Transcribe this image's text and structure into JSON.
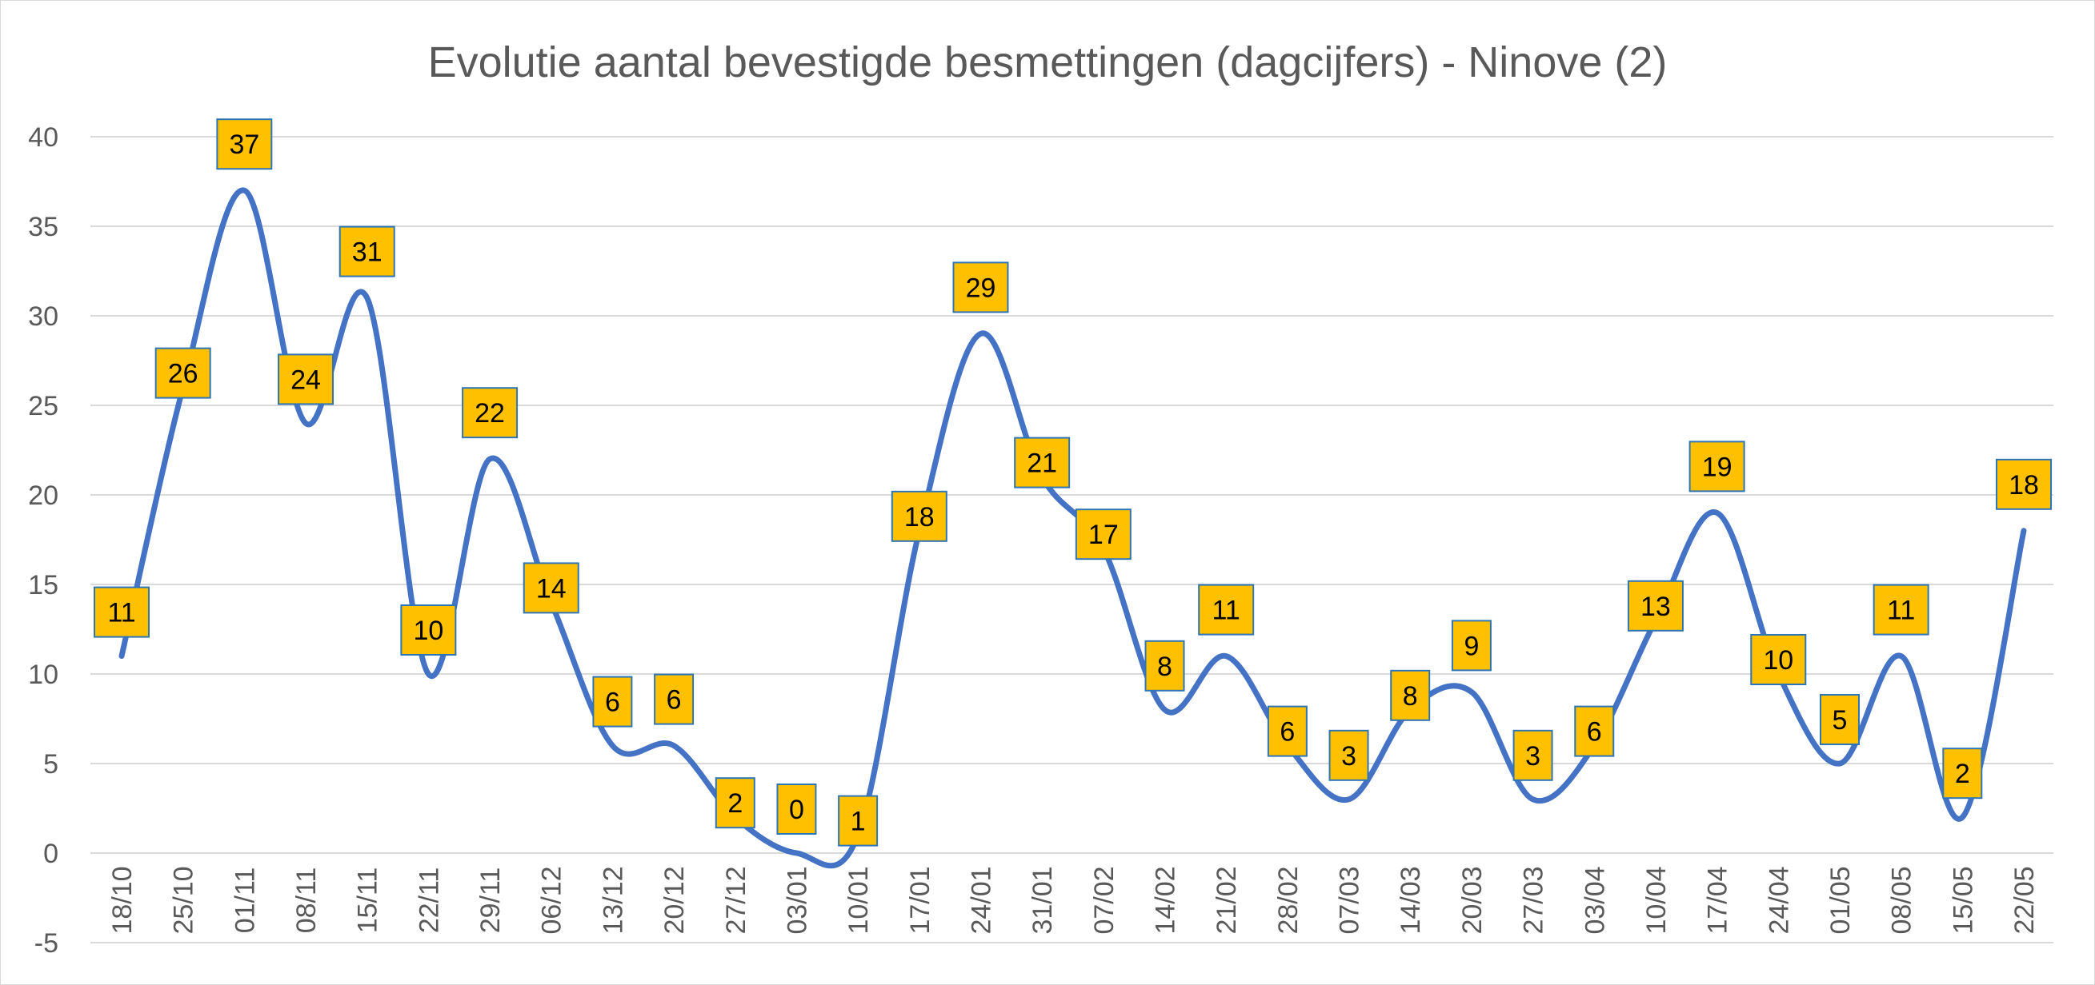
{
  "chart_data": {
    "type": "line",
    "title": "Evolutie aantal bevestigde besmettingen (dagcijfers) - Ninove (2)",
    "xlabel": "",
    "ylabel": "",
    "ylim": [
      -5,
      40
    ],
    "yticks": [
      -5,
      0,
      5,
      10,
      15,
      20,
      25,
      30,
      35,
      40
    ],
    "grid": true,
    "smooth": true,
    "legend": "none",
    "categories": [
      "18/10",
      "25/10",
      "01/11",
      "08/11",
      "15/11",
      "22/11",
      "29/11",
      "06/12",
      "13/12",
      "20/12",
      "27/12",
      "03/01",
      "10/01",
      "17/01",
      "24/01",
      "31/01",
      "07/02",
      "14/02",
      "21/02",
      "28/02",
      "07/03",
      "14/03",
      "20/03",
      "27/03",
      "03/04",
      "10/04",
      "17/04",
      "24/04",
      "01/05",
      "08/05",
      "15/05",
      "22/05"
    ],
    "series": [
      {
        "name": "Ninove",
        "values": [
          11,
          26,
          37,
          24,
          31,
          10,
          22,
          14,
          6,
          6,
          2,
          0,
          1,
          18,
          29,
          21,
          17,
          8,
          11,
          6,
          3,
          8,
          9,
          3,
          6,
          13,
          19,
          10,
          5,
          11,
          2,
          18
        ]
      }
    ],
    "colors": {
      "line": "#4472C4",
      "label_fill": "#FFC000",
      "label_border": "#2E75B6",
      "grid": "#D9D9D9",
      "text": "#595959"
    }
  }
}
